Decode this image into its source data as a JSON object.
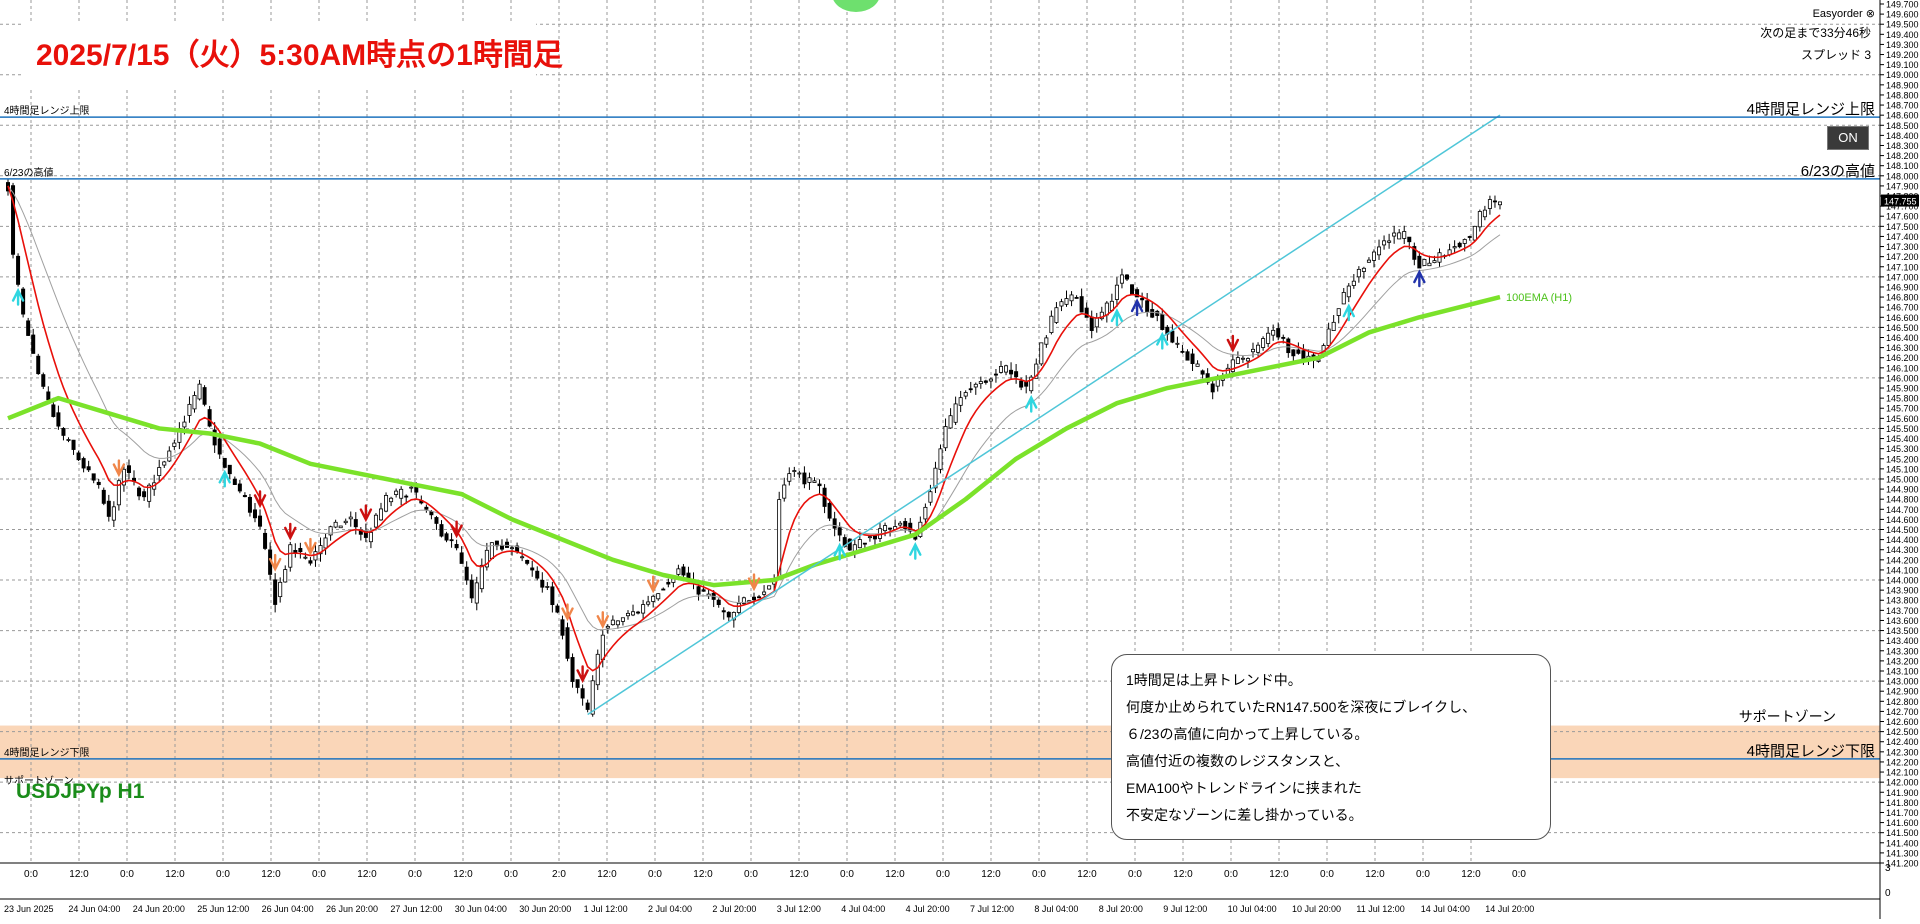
{
  "title": "2025/7/15（火）5:30AM時点の1時間足",
  "symbol": "USDJPYp H1",
  "easyorder": {
    "label": "Easyorder",
    "close_symbol": "⊗",
    "next_bar": "次の足まで33分46秒",
    "spread": "スプレッド 3",
    "on_button": "ON"
  },
  "levels": [
    {
      "id": "range-high",
      "left_label": "4時間足レンジ上限",
      "right_label": "4時間足レンジ上限",
      "price": 148.58,
      "color": "#1e73be"
    },
    {
      "id": "jun23-high",
      "left_label": "6/23の高値",
      "right_label": "6/23の高値",
      "price": 147.97,
      "color": "#1e73be"
    },
    {
      "id": "range-low",
      "left_label": "4時間足レンジ下限",
      "right_label": "4時間足レンジ下限",
      "price": 142.23,
      "color": "#1e73be"
    }
  ],
  "support_zone": {
    "left_label": "サポートゾーン",
    "right_label": "サポートゾーン",
    "top": 142.56,
    "bottom": 142.04,
    "color": "#fad6b8"
  },
  "ema_label": "100EMA (H1)",
  "note_lines": [
    "1時間足は上昇トレンド中。",
    "何度か止められていたRN147.500を深夜にブレイクし、",
    "６/23の高値に向かって上昇している。",
    "高値付近の複数のレジスタンスと、",
    "EMA100やトレンドラインに挟まれた",
    "不安定なゾーンに差し掛かっている。"
  ],
  "time_axis": {
    "hour_labels": [
      "0:0",
      "12:0",
      "0:0",
      "12:0",
      "0:0",
      "12:0",
      "0:0",
      "12:0",
      "0:0",
      "12:0",
      "0:0",
      "2:0",
      "12:0",
      "0:0",
      "12:0",
      "0:0",
      "12:0",
      "0:0",
      "12:0",
      "0:0",
      "12:0",
      "0:0",
      "12:0",
      "0:0",
      "12:0",
      "0:0",
      "12:0",
      "0:0",
      "12:0",
      "0:0",
      "12:0",
      "0:0"
    ],
    "date_labels": [
      "23 Jun 2025",
      "24 Jun 04:00",
      "24 Jun 20:00",
      "25 Jun 12:00",
      "26 Jun 04:00",
      "26 Jun 20:00",
      "27 Jun 12:00",
      "30 Jun 04:00",
      "30 Jun 20:00",
      "1 Jul 12:00",
      "2 Jul 04:00",
      "2 Jul 20:00",
      "3 Jul 12:00",
      "4 Jul 04:00",
      "4 Jul 20:00",
      "7 Jul 12:00",
      "8 Jul 04:00",
      "8 Jul 20:00",
      "9 Jul 12:00",
      "10 Jul 04:00",
      "10 Jul 20:00",
      "11 Jul 12:00",
      "14 Jul 04:00",
      "14 Jul 20:00"
    ]
  },
  "subwindow_axis": [
    "3",
    "0"
  ],
  "chart_data": {
    "type": "candlestick",
    "symbol": "USDJPYp",
    "timeframe": "H1",
    "ylim": [
      141.2,
      149.7
    ],
    "y_ticks": [
      "141.200",
      "141.300",
      "141.400",
      "141.500",
      "141.600",
      "141.700",
      "141.800",
      "141.900",
      "142.000",
      "142.100",
      "142.200",
      "142.300",
      "142.400",
      "142.500",
      "142.600",
      "142.700",
      "142.800",
      "142.900",
      "143.000",
      "143.100",
      "143.200",
      "143.300",
      "143.400",
      "143.500",
      "143.600",
      "143.700",
      "143.800",
      "143.900",
      "144.000",
      "144.100",
      "144.200",
      "144.300",
      "144.400",
      "144.500",
      "144.600",
      "144.700",
      "144.800",
      "144.900",
      "145.000",
      "145.100",
      "145.200",
      "145.300",
      "145.400",
      "145.500",
      "145.600",
      "145.700",
      "145.800",
      "145.900",
      "146.000",
      "146.100",
      "146.200",
      "146.300",
      "146.400",
      "146.500",
      "146.600",
      "146.700",
      "146.800",
      "146.900",
      "147.000",
      "147.100",
      "147.200",
      "147.300",
      "147.400",
      "147.500",
      "147.600",
      "147.700",
      "147.800",
      "147.900",
      "148.000",
      "148.100",
      "148.200",
      "148.300",
      "148.400",
      "148.500",
      "148.600",
      "148.700",
      "148.800",
      "148.900",
      "149.000",
      "149.100",
      "149.200",
      "149.300",
      "149.400",
      "149.500",
      "149.600",
      "149.700"
    ],
    "current_price": "147.755",
    "price_path": [
      [
        0,
        147.9
      ],
      [
        1,
        147.2
      ],
      [
        3,
        146.6
      ],
      [
        6,
        146.0
      ],
      [
        10,
        145.5
      ],
      [
        14,
        145.2
      ],
      [
        18,
        144.9
      ],
      [
        20,
        144.6
      ],
      [
        23,
        145.1
      ],
      [
        27,
        144.8
      ],
      [
        30,
        145.1
      ],
      [
        34,
        145.5
      ],
      [
        38,
        145.9
      ],
      [
        40,
        145.5
      ],
      [
        43,
        145.1
      ],
      [
        47,
        144.8
      ],
      [
        50,
        144.5
      ],
      [
        53,
        143.8
      ],
      [
        56,
        144.3
      ],
      [
        60,
        144.2
      ],
      [
        64,
        144.5
      ],
      [
        68,
        144.6
      ],
      [
        71,
        144.4
      ],
      [
        75,
        144.8
      ],
      [
        80,
        144.9
      ],
      [
        84,
        144.6
      ],
      [
        89,
        144.3
      ],
      [
        92,
        143.8
      ],
      [
        96,
        144.4
      ],
      [
        100,
        144.3
      ],
      [
        104,
        144.1
      ],
      [
        107,
        143.9
      ],
      [
        110,
        143.5
      ],
      [
        112,
        143.0
      ],
      [
        115,
        142.7
      ],
      [
        118,
        143.5
      ],
      [
        121,
        143.6
      ],
      [
        125,
        143.7
      ],
      [
        129,
        143.9
      ],
      [
        133,
        144.1
      ],
      [
        137,
        143.9
      ],
      [
        140,
        143.8
      ],
      [
        143,
        143.6
      ],
      [
        146,
        143.8
      ],
      [
        150,
        143.9
      ],
      [
        152,
        144.0
      ],
      [
        153,
        144.8
      ],
      [
        155,
        145.1
      ],
      [
        158,
        145.0
      ],
      [
        161,
        144.9
      ],
      [
        164,
        144.5
      ],
      [
        167,
        144.3
      ],
      [
        170,
        144.4
      ],
      [
        174,
        144.5
      ],
      [
        177,
        144.6
      ],
      [
        180,
        144.4
      ],
      [
        183,
        144.9
      ],
      [
        186,
        145.5
      ],
      [
        190,
        145.9
      ],
      [
        194,
        146.0
      ],
      [
        198,
        146.1
      ],
      [
        202,
        145.9
      ],
      [
        205,
        146.3
      ],
      [
        208,
        146.7
      ],
      [
        212,
        146.8
      ],
      [
        215,
        146.5
      ],
      [
        218,
        146.7
      ],
      [
        221,
        147.0
      ],
      [
        224,
        146.8
      ],
      [
        228,
        146.6
      ],
      [
        232,
        146.3
      ],
      [
        236,
        146.1
      ],
      [
        239,
        145.9
      ],
      [
        242,
        146.1
      ],
      [
        245,
        146.2
      ],
      [
        248,
        146.3
      ],
      [
        251,
        146.5
      ],
      [
        254,
        146.3
      ],
      [
        257,
        146.2
      ],
      [
        260,
        146.2
      ],
      [
        263,
        146.6
      ],
      [
        266,
        146.9
      ],
      [
        270,
        147.2
      ],
      [
        274,
        147.4
      ],
      [
        277,
        147.4
      ],
      [
        280,
        147.1
      ],
      [
        284,
        147.2
      ],
      [
        287,
        147.3
      ],
      [
        290,
        147.4
      ],
      [
        293,
        147.7
      ],
      [
        296,
        147.75
      ]
    ],
    "ema100": [
      [
        0,
        145.6
      ],
      [
        10,
        145.8
      ],
      [
        20,
        145.65
      ],
      [
        30,
        145.5
      ],
      [
        40,
        145.45
      ],
      [
        50,
        145.35
      ],
      [
        60,
        145.15
      ],
      [
        70,
        145.05
      ],
      [
        80,
        144.95
      ],
      [
        90,
        144.85
      ],
      [
        100,
        144.6
      ],
      [
        110,
        144.4
      ],
      [
        120,
        144.2
      ],
      [
        130,
        144.05
      ],
      [
        140,
        143.95
      ],
      [
        152,
        144.0
      ],
      [
        160,
        144.15
      ],
      [
        170,
        144.3
      ],
      [
        180,
        144.45
      ],
      [
        190,
        144.8
      ],
      [
        200,
        145.2
      ],
      [
        210,
        145.5
      ],
      [
        220,
        145.75
      ],
      [
        230,
        145.9
      ],
      [
        240,
        146.0
      ],
      [
        250,
        146.1
      ],
      [
        260,
        146.2
      ],
      [
        270,
        146.45
      ],
      [
        280,
        146.6
      ],
      [
        296,
        146.8
      ]
    ],
    "trendline": {
      "from": [
        115,
        142.67
      ],
      "to": [
        296,
        148.6
      ]
    },
    "signal_arrows": [
      {
        "i": 2,
        "dir": "up",
        "color": "#2fd6e0"
      },
      {
        "i": 22,
        "dir": "down",
        "color": "#f0864a"
      },
      {
        "i": 43,
        "dir": "up",
        "color": "#2fd6e0"
      },
      {
        "i": 50,
        "dir": "down",
        "color": "#cc1010"
      },
      {
        "i": 53,
        "dir": "down",
        "color": "#f0864a"
      },
      {
        "i": 56,
        "dir": "down",
        "color": "#cc1010"
      },
      {
        "i": 60,
        "dir": "down",
        "color": "#f0864a"
      },
      {
        "i": 71,
        "dir": "down",
        "color": "#cc1010"
      },
      {
        "i": 89,
        "dir": "down",
        "color": "#cc1010"
      },
      {
        "i": 111,
        "dir": "down",
        "color": "#f0864a"
      },
      {
        "i": 114,
        "dir": "down",
        "color": "#cc1010"
      },
      {
        "i": 118,
        "dir": "down",
        "color": "#f0864a"
      },
      {
        "i": 128,
        "dir": "down",
        "color": "#f0864a"
      },
      {
        "i": 148,
        "dir": "down",
        "color": "#f0864a"
      },
      {
        "i": 165,
        "dir": "up",
        "color": "#2fd6e0"
      },
      {
        "i": 180,
        "dir": "up",
        "color": "#2fd6e0"
      },
      {
        "i": 203,
        "dir": "up",
        "color": "#2fd6e0"
      },
      {
        "i": 220,
        "dir": "up",
        "color": "#2fd6e0"
      },
      {
        "i": 224,
        "dir": "up",
        "color": "#2233aa"
      },
      {
        "i": 229,
        "dir": "up",
        "color": "#2fd6e0"
      },
      {
        "i": 243,
        "dir": "down",
        "color": "#cc1010"
      },
      {
        "i": 266,
        "dir": "up",
        "color": "#2fd6e0"
      },
      {
        "i": 280,
        "dir": "up",
        "color": "#2233aa"
      }
    ],
    "colors": {
      "candle": "#000000",
      "fast_ma": "#e8100a",
      "slow_ma": "#a0a0a0",
      "ema100": "#7be22a",
      "trendline": "#4fc6d8",
      "level": "#1e73be",
      "grid": "#9a9a9a"
    }
  }
}
